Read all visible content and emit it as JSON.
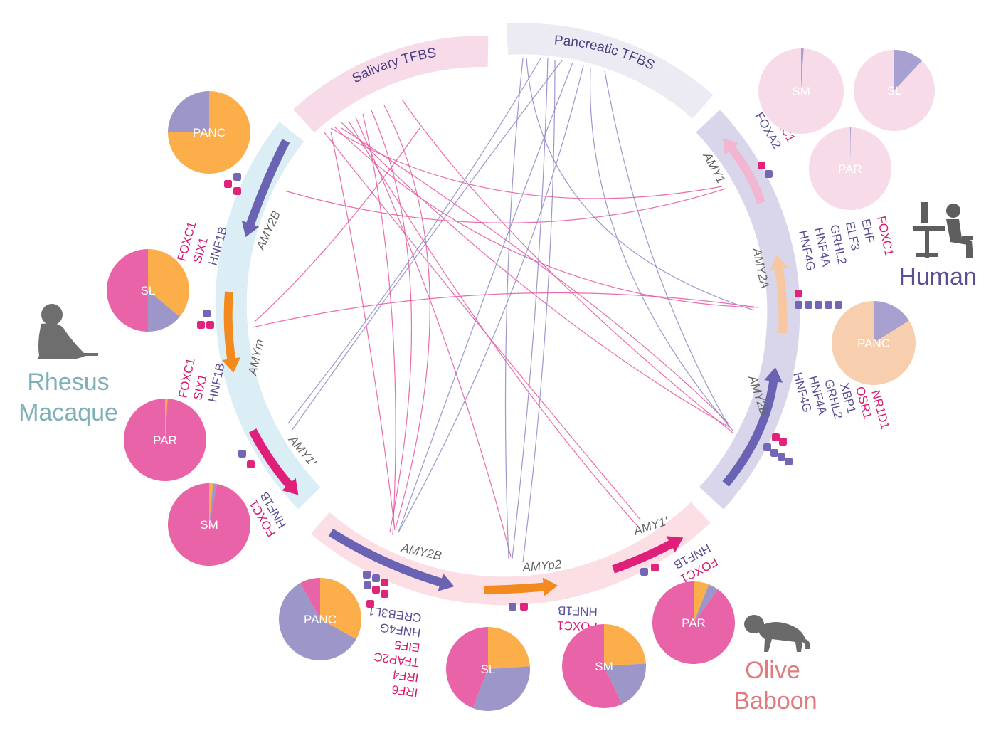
{
  "colors": {
    "salivary": "#e6539d",
    "pancreatic": "#8c86c4",
    "orange": "#f28a1e",
    "pie_orange": "#fbae4a",
    "pie_purple": "#9d96c8",
    "pie_pink": "#e963a8",
    "tf_pink": "#d81b70",
    "tf_purple": "#5a4f96",
    "human_pink": "#f8dbe8",
    "human_peach": "#f8cfae",
    "human_purple": "#a8a0d0"
  },
  "tfbs_arcs": {
    "salivary": "Salivary TFBS",
    "pancreatic": "Pancreatic TFBS"
  },
  "species": {
    "rhesus": [
      "Rhesus",
      "Macaque"
    ],
    "human": "Human",
    "baboon": [
      "Olive",
      "Baboon"
    ]
  },
  "genes": {
    "human_amy1": "AMY1",
    "human_amy2a": "AMY2A",
    "human_amy2b": "AMY2B",
    "rhesus_amy2b": "AMY2B",
    "rhesus_amym": "AMYm",
    "rhesus_amy1": "AMY1'",
    "baboon_amy2b": "AMY2B",
    "baboon_amyp2": "AMYp2",
    "baboon_amy1": "AMY1'"
  },
  "tf_lists": {
    "human_amy1": [
      {
        "text": "FOXC1",
        "c": "pink"
      },
      {
        "text": "FOXA2",
        "c": "purple"
      }
    ],
    "human_amy2a": [
      {
        "text": "FOXC1",
        "c": "pink"
      },
      {
        "text": "EHF",
        "c": "purple"
      },
      {
        "text": "ELF3",
        "c": "purple"
      },
      {
        "text": "GRHL2",
        "c": "purple"
      },
      {
        "text": "HNF4A",
        "c": "purple"
      },
      {
        "text": "HNF4G",
        "c": "purple"
      }
    ],
    "human_amy2b": [
      {
        "text": "NR1D1",
        "c": "pink"
      },
      {
        "text": "OSR1",
        "c": "pink"
      },
      {
        "text": "XBP1",
        "c": "purple"
      },
      {
        "text": "GRHL2",
        "c": "purple"
      },
      {
        "text": "HNF4A",
        "c": "purple"
      },
      {
        "text": "HNF4G",
        "c": "purple"
      }
    ],
    "rhesus_amy2b": [
      {
        "text": "FOXC1",
        "c": "pink"
      },
      {
        "text": "SIX1",
        "c": "pink"
      },
      {
        "text": "HNF1B",
        "c": "purple"
      }
    ],
    "rhesus_amym": [
      {
        "text": "FOXC1",
        "c": "pink"
      },
      {
        "text": "SIX1",
        "c": "pink"
      },
      {
        "text": "HNF1B",
        "c": "purple"
      }
    ],
    "rhesus_amy1": [
      {
        "text": "FOXC1",
        "c": "pink"
      },
      {
        "text": "HNF1B",
        "c": "purple"
      }
    ],
    "baboon_amy2b": [
      {
        "text": "IRF6",
        "c": "pink"
      },
      {
        "text": "IRF4",
        "c": "pink"
      },
      {
        "text": "TFAP2C",
        "c": "pink"
      },
      {
        "text": "EIF5",
        "c": "pink"
      },
      {
        "text": "HNF4G",
        "c": "purple"
      },
      {
        "text": "CREB3L1",
        "c": "purple"
      }
    ],
    "baboon_amyp2": [
      {
        "text": "FOXC1",
        "c": "pink"
      },
      {
        "text": "HNF1B",
        "c": "purple"
      }
    ],
    "baboon_amy1": [
      {
        "text": "FOXC1",
        "c": "pink"
      },
      {
        "text": "HNF1B",
        "c": "purple"
      }
    ]
  },
  "pies": [
    {
      "id": "rh-panc",
      "label": "PANC",
      "slices": [
        {
          "v": 0.75,
          "c": "orange"
        },
        {
          "v": 0.25,
          "c": "purple"
        }
      ]
    },
    {
      "id": "rh-sl",
      "label": "SL",
      "slices": [
        {
          "v": 0.36,
          "c": "orange"
        },
        {
          "v": 0.14,
          "c": "purple"
        },
        {
          "v": 0.5,
          "c": "pink"
        }
      ]
    },
    {
      "id": "rh-par",
      "label": "PAR",
      "slices": [
        {
          "v": 0.01,
          "c": "orange"
        },
        {
          "v": 0.99,
          "c": "pink"
        }
      ]
    },
    {
      "id": "rh-sm",
      "label": "SM",
      "slices": [
        {
          "v": 0.015,
          "c": "orange"
        },
        {
          "v": 0.015,
          "c": "purple"
        },
        {
          "v": 0.97,
          "c": "pink"
        }
      ]
    },
    {
      "id": "hu-sm",
      "label": "SM",
      "slices": [
        {
          "v": 0.01,
          "c": "hpurple"
        },
        {
          "v": 0.99,
          "c": "hpink"
        }
      ]
    },
    {
      "id": "hu-sl",
      "label": "SL",
      "slices": [
        {
          "v": 0.12,
          "c": "hpurple"
        },
        {
          "v": 0.88,
          "c": "hpink"
        }
      ]
    },
    {
      "id": "hu-par",
      "label": "PAR",
      "slices": [
        {
          "v": 0.003,
          "c": "hpurple"
        },
        {
          "v": 0.997,
          "c": "hpink"
        }
      ]
    },
    {
      "id": "hu-panc",
      "label": "PANC",
      "slices": [
        {
          "v": 0.16,
          "c": "hpurple"
        },
        {
          "v": 0.84,
          "c": "hpeach"
        }
      ]
    },
    {
      "id": "ba-panc",
      "label": "PANC",
      "slices": [
        {
          "v": 0.33,
          "c": "orange"
        },
        {
          "v": 0.59,
          "c": "purple"
        },
        {
          "v": 0.08,
          "c": "pink"
        }
      ]
    },
    {
      "id": "ba-sl",
      "label": "SL",
      "slices": [
        {
          "v": 0.24,
          "c": "orange"
        },
        {
          "v": 0.32,
          "c": "purple"
        },
        {
          "v": 0.44,
          "c": "pink"
        }
      ]
    },
    {
      "id": "ba-sm",
      "label": "SM",
      "slices": [
        {
          "v": 0.24,
          "c": "orange"
        },
        {
          "v": 0.19,
          "c": "purple"
        },
        {
          "v": 0.57,
          "c": "pink"
        }
      ]
    },
    {
      "id": "ba-par",
      "label": "PAR",
      "slices": [
        {
          "v": 0.06,
          "c": "orange"
        },
        {
          "v": 0.04,
          "c": "purple"
        },
        {
          "v": 0.9,
          "c": "pink"
        }
      ]
    }
  ]
}
